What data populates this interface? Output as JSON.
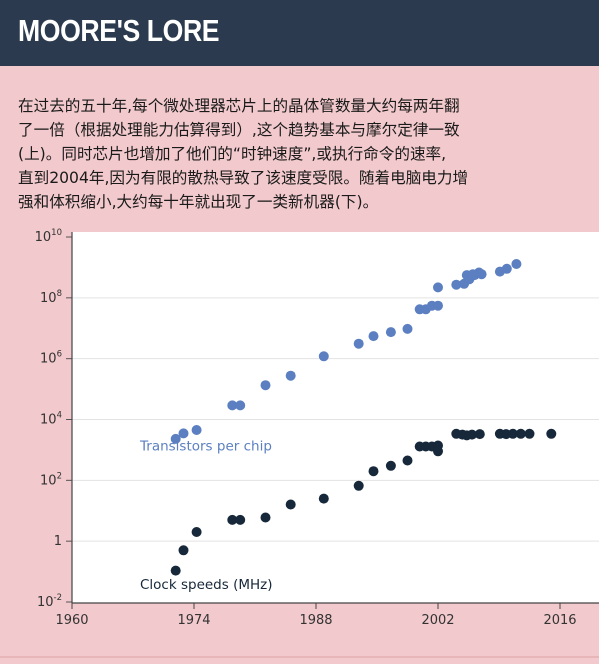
{
  "header": {
    "title": "MOORE'S LORE"
  },
  "intro": {
    "lines": [
      "在过去的五十年,每个微处理器芯片上的晶体管数量大约每两年翻",
      "了一倍（根据处理能力估算得到）,这个趋势基本与摩尔定律一致",
      "(上)。同时芯片也增加了他们的“时钟速度”,或执行命令的速率,",
      "直到2004年,因为有限的散热导致了该速度受限。随着电脑电力增",
      "强和体积缩小,大约每十年就出现了一类新机器(下)。"
    ]
  },
  "chart_data": {
    "type": "scatter",
    "title": "",
    "xlabel": "",
    "ylabel": "",
    "xlim": [
      1960,
      2016
    ],
    "ylim": [
      0.01,
      10000000000
    ],
    "y_scale": "log",
    "x_ticks": [
      "1960",
      "1974",
      "1988",
      "2002",
      "2016"
    ],
    "x_tick_values": [
      1960,
      1974,
      1988,
      2002,
      2016
    ],
    "y_ticks": [
      {
        "value": 10000000000,
        "base": "10",
        "exp": "10"
      },
      {
        "value": 100000000,
        "base": "10",
        "exp": "8"
      },
      {
        "value": 1000000,
        "base": "10",
        "exp": "6"
      },
      {
        "value": 10000,
        "base": "10",
        "exp": "4"
      },
      {
        "value": 100,
        "base": "10",
        "exp": "2"
      },
      {
        "value": 1,
        "base": "1",
        "exp": ""
      },
      {
        "value": 0.01,
        "base": "10",
        "exp": "-2"
      }
    ],
    "grid": true,
    "series": [
      {
        "name": "Transistors per chip",
        "color": "#5b7fc0",
        "points": [
          [
            1971.9,
            2300
          ],
          [
            1972.8,
            3500
          ],
          [
            1974.3,
            4500
          ],
          [
            1978.4,
            29000
          ],
          [
            1979.3,
            29000
          ],
          [
            1982.2,
            134000
          ],
          [
            1985.1,
            275000
          ],
          [
            1988.9,
            1200000
          ],
          [
            1992.9,
            3100000
          ],
          [
            1994.6,
            5500000
          ],
          [
            1996.6,
            7500000
          ],
          [
            1998.5,
            9500000
          ],
          [
            1999.9,
            42000000
          ],
          [
            2000.6,
            42000000
          ],
          [
            2001.3,
            55000000
          ],
          [
            2002.0,
            220000000
          ],
          [
            2002.0,
            55000000
          ],
          [
            2004.1,
            270000000
          ],
          [
            2005.0,
            290000000
          ],
          [
            2005.3,
            560000000
          ],
          [
            2005.6,
            410000000
          ],
          [
            2006.0,
            600000000
          ],
          [
            2006.7,
            680000000
          ],
          [
            2006.2,
            560000000
          ],
          [
            2007.0,
            600000000
          ],
          [
            2009.1,
            730000000
          ],
          [
            2009.9,
            900000000
          ],
          [
            2011.0,
            1300000000
          ]
        ]
      },
      {
        "name": "Clock speeds (MHz)",
        "color": "#16283a",
        "points": [
          [
            1971.9,
            0.108
          ],
          [
            1972.8,
            0.5
          ],
          [
            1974.3,
            2
          ],
          [
            1978.4,
            5
          ],
          [
            1979.3,
            5
          ],
          [
            1982.2,
            6
          ],
          [
            1985.1,
            16
          ],
          [
            1988.9,
            25
          ],
          [
            1992.9,
            66
          ],
          [
            1994.6,
            200
          ],
          [
            1996.6,
            300
          ],
          [
            1998.5,
            450
          ],
          [
            1999.9,
            1300
          ],
          [
            2000.6,
            1300
          ],
          [
            2001.3,
            1300
          ],
          [
            2002.0,
            1400
          ],
          [
            2002.0,
            900
          ],
          [
            2004.1,
            3400
          ],
          [
            2004.8,
            3200
          ],
          [
            2005.3,
            3000
          ],
          [
            2005.9,
            3200
          ],
          [
            2006.8,
            3300
          ],
          [
            2009.1,
            3400
          ],
          [
            2009.8,
            3300
          ],
          [
            2010.6,
            3400
          ],
          [
            2011.5,
            3400
          ],
          [
            2012.5,
            3400
          ],
          [
            2015.0,
            3400
          ]
        ]
      }
    ],
    "annotations": [
      {
        "text": "Transistors per chip",
        "x": 1967.8,
        "y": 950,
        "color": "#5b7fc0"
      },
      {
        "text": "Clock speeds (MHz)",
        "x": 1967.8,
        "y": 0.027,
        "color": "#16283a"
      }
    ]
  }
}
